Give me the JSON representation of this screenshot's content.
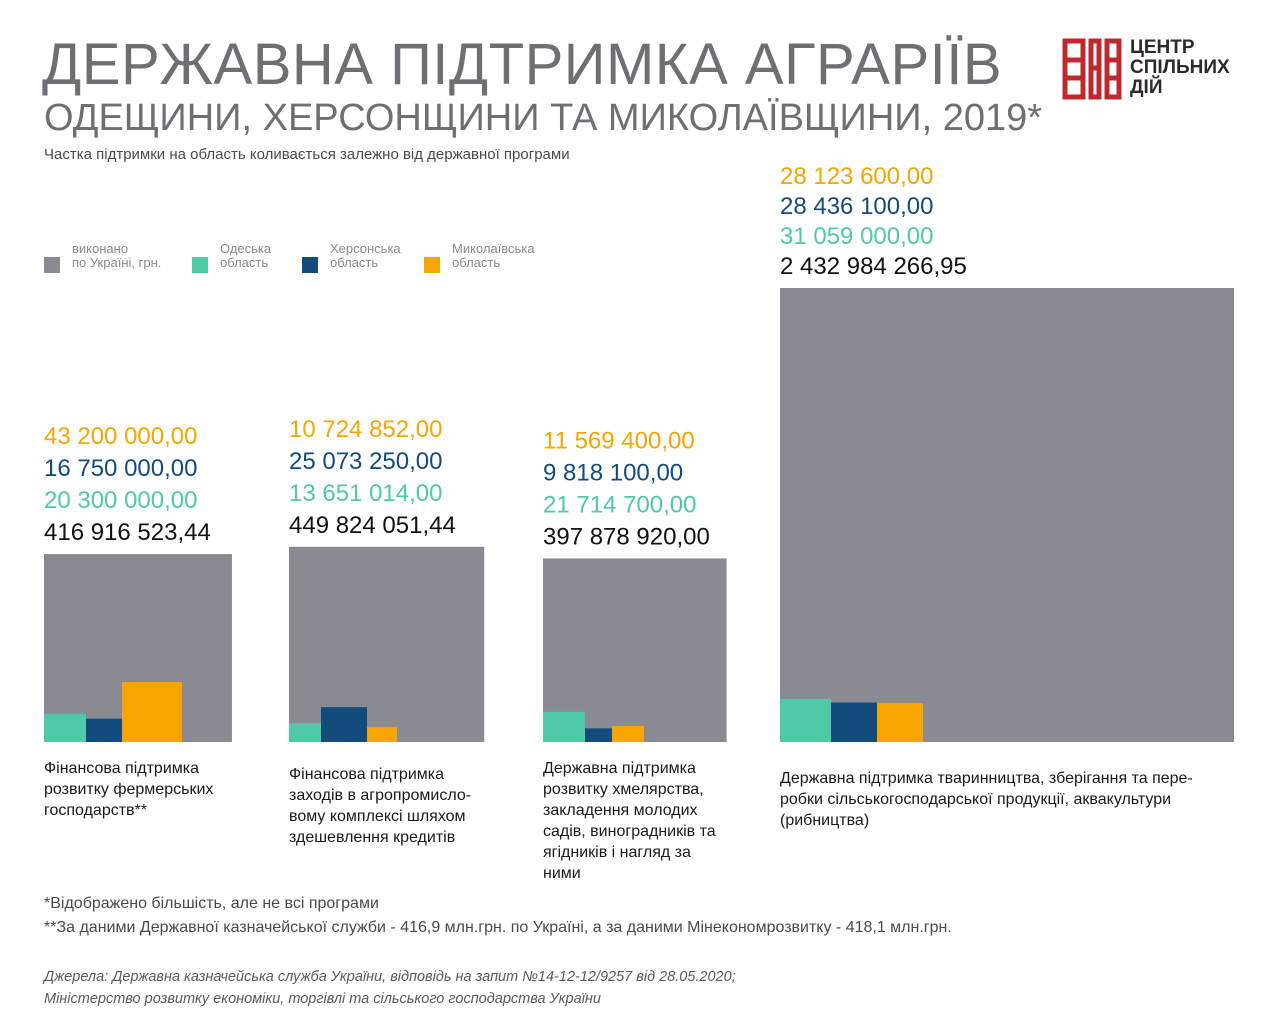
{
  "header": {
    "title_line1": "ДЕРЖАВНА ПІДТРИМКА АГРАРІЇВ",
    "title_line2": "ОДЕЩИНИ, ХЕРСОНЩИНИ ТА МИКОЛАЇВЩИНИ, 2019*",
    "subtitle": "Частка підтримки на область коливається залежно від державної програми"
  },
  "logo": {
    "lines": [
      "ЦЕНТР",
      "СПІЛЬНИХ",
      "ДІЙ"
    ],
    "color": "#c0282d"
  },
  "legend": [
    {
      "line1": "виконано",
      "line2": "по Україні, грн.",
      "color": "#8a8a93"
    },
    {
      "line1": "Одеська",
      "line2": "область",
      "color": "#4fc9a8"
    },
    {
      "line1": "Херсонська",
      "line2": "область",
      "color": "#134b7c"
    },
    {
      "line1": "Миколаївська",
      "line2": "область",
      "color": "#f7a500"
    }
  ],
  "chart_data": {
    "type": "bar",
    "series": [
      {
        "name": "виконано по Україні, грн.",
        "color": "#8a8a93",
        "values": [
          416916523.44,
          449824051.44,
          397878920.0,
          2432984266.95
        ]
      },
      {
        "name": "Одеська область",
        "color": "#4fc9a8",
        "values": [
          20300000.0,
          13651014.0,
          21714700.0,
          31059000.0
        ]
      },
      {
        "name": "Херсонська область",
        "color": "#134b7c",
        "values": [
          16750000.0,
          25073250.0,
          9818100.0,
          28436100.0
        ]
      },
      {
        "name": "Миколаївська область",
        "color": "#f7a500",
        "values": [
          43200000.0,
          10724852.0,
          11569400.0,
          28123600.0
        ]
      }
    ],
    "value_labels": [
      {
        "mykolaiv": "43 200 000,00",
        "kherson": "16 750 000,00",
        "odesa": "20 300 000,00",
        "ukraine": "416 916 523,44"
      },
      {
        "mykolaiv": "10 724 852,00",
        "kherson": "25 073 250,00",
        "odesa": "13 651 014,00",
        "ukraine": "449 824 051,44"
      },
      {
        "mykolaiv": "11 569 400,00",
        "kherson": "9 818 100,00",
        "odesa": "21 714 700,00",
        "ukraine": "397 878 920,00"
      },
      {
        "mykolaiv": "28 123 600,00",
        "kherson": "28 436 100,00",
        "odesa": "31 059 000,00",
        "ukraine": "2 432 984 266,95"
      }
    ],
    "categories": [
      [
        "Фінансова підтримка",
        "розвитку фермерських",
        "господарств**"
      ],
      [
        "Фінансова підтримка",
        "заходів в агропромисло-",
        "вому комплексі шляхом",
        "здешевлення кредитів"
      ],
      [
        "Державна підтримка",
        "розвитку хмелярства,",
        "закладення молодих",
        "садів, виноградників та",
        "ягідників і нагляд за",
        "ними"
      ],
      [
        "Державна підтримка тваринництва, зберігання та пере-",
        "робки сільськогосподарської продукції, аквакультури",
        "(рибництва)"
      ]
    ]
  },
  "footnotes": [
    "*Відображено більшість, але не всі програми",
    "**За даними Державної казначейської служби - 416,9 млн.грн. по Україні, а за даними Мінекономрозвитку - 418,1 млн.грн."
  ],
  "sources": [
    "Джерела: Державна казначейська служба України, відповідь на запит №14-12-12/9257 від 28.05.2020;",
    "Міністерство розвитку економіки, торгівлі та сільського господарства України"
  ]
}
